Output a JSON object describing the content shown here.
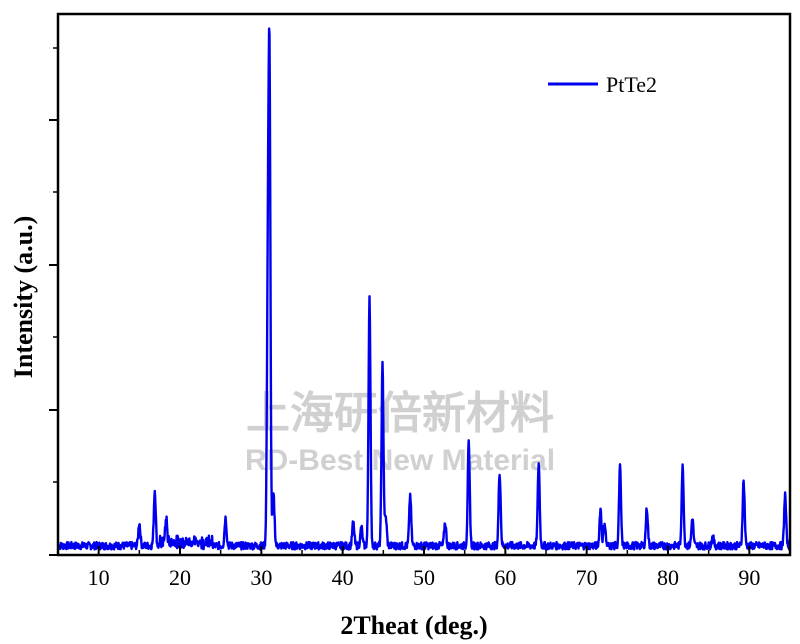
{
  "chart_data": {
    "type": "line",
    "xlabel": "2Theat (deg.)",
    "ylabel": "Intensity (a.u.)",
    "xlim": [
      5,
      95
    ],
    "ylim": [
      0,
      100
    ],
    "x_ticks": [
      10,
      20,
      30,
      40,
      50,
      60,
      70,
      80,
      90
    ],
    "y_ticks_labeled": false,
    "legend": {
      "position": "top-right"
    },
    "color": "#0000ee",
    "series": [
      {
        "name": "PtTe2",
        "baseline": 2,
        "peaks": [
          {
            "x": 15.0,
            "y": 7
          },
          {
            "x": 16.9,
            "y": 14
          },
          {
            "x": 18.3,
            "y": 7
          },
          {
            "x": 25.6,
            "y": 8
          },
          {
            "x": 30.8,
            "y": 50
          },
          {
            "x": 31.0,
            "y": 100
          },
          {
            "x": 31.5,
            "y": 13
          },
          {
            "x": 41.3,
            "y": 7
          },
          {
            "x": 42.3,
            "y": 6
          },
          {
            "x": 43.3,
            "y": 56
          },
          {
            "x": 44.9,
            "y": 41
          },
          {
            "x": 45.3,
            "y": 8
          },
          {
            "x": 48.3,
            "y": 13
          },
          {
            "x": 52.6,
            "y": 7
          },
          {
            "x": 55.5,
            "y": 24
          },
          {
            "x": 59.3,
            "y": 18
          },
          {
            "x": 64.1,
            "y": 20
          },
          {
            "x": 71.7,
            "y": 10
          },
          {
            "x": 72.2,
            "y": 7
          },
          {
            "x": 74.1,
            "y": 19
          },
          {
            "x": 77.4,
            "y": 10
          },
          {
            "x": 81.8,
            "y": 19
          },
          {
            "x": 83.0,
            "y": 8
          },
          {
            "x": 85.5,
            "y": 4
          },
          {
            "x": 89.3,
            "y": 16
          },
          {
            "x": 94.4,
            "y": 13
          }
        ]
      }
    ]
  },
  "watermark": {
    "line1": "上海研倍新材料",
    "line2": "RD-Best New Material"
  }
}
